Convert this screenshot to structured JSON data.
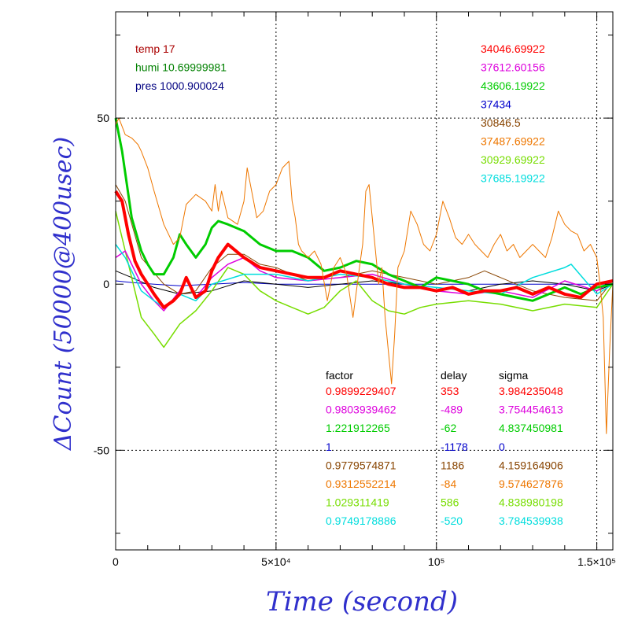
{
  "chart_data": {
    "type": "line",
    "xlabel": "Time (second)",
    "ylabel": "ΔCount (50000@400usec)",
    "xlim": [
      0,
      155000
    ],
    "ylim": [
      -80,
      82
    ],
    "grid": "dotted at x=5×10⁴, 10⁵, 1.5×10⁵ and y=50, -50",
    "x_tick_labels": [
      {
        "x": 0,
        "label": "0"
      },
      {
        "x": 50000,
        "label": "5×10⁴"
      },
      {
        "x": 100000,
        "label": "10⁵"
      },
      {
        "x": 150000,
        "label": "1.5×10⁵"
      }
    ],
    "y_tick_labels": [
      {
        "y": 50,
        "label": "50"
      },
      {
        "y": 0,
        "label": "0"
      },
      {
        "y": -50,
        "label": "-50"
      }
    ],
    "env": [
      {
        "text": "temp 17",
        "color": "#aa0000"
      },
      {
        "text": "humi 10.69999981",
        "color": "#008000"
      },
      {
        "text": "pres 1000.900024",
        "color": "#000080"
      }
    ],
    "means": [
      {
        "text": "34046.69922",
        "color": "#ff0000"
      },
      {
        "text": "37612.60156",
        "color": "#dd00dd"
      },
      {
        "text": "43606.19922",
        "color": "#00cc00"
      },
      {
        "text": "37434",
        "color": "#0000cc"
      },
      {
        "text": "30846.5",
        "color": "#884400"
      },
      {
        "text": "37487.69922",
        "color": "#ee7700"
      },
      {
        "text": "30929.69922",
        "color": "#77dd00"
      },
      {
        "text": "37685.19922",
        "color": "#00dddd"
      }
    ],
    "table": {
      "headers": [
        "factor",
        "delay",
        "sigma"
      ],
      "rows": [
        {
          "factor": "0.9899229407",
          "delay": "353",
          "sigma": "3.984235048",
          "color": "#ff0000"
        },
        {
          "factor": "0.9803939462",
          "delay": "-489",
          "sigma": "3.754454613",
          "color": "#dd00dd"
        },
        {
          "factor": "1.221912265",
          "delay": "-62",
          "sigma": "4.837450981",
          "color": "#00cc00"
        },
        {
          "factor": "1",
          "delay": "-1178",
          "sigma": "0",
          "color": "#0000cc"
        },
        {
          "factor": "0.9779574871",
          "delay": "1186",
          "sigma": "4.159164906",
          "color": "#884400"
        },
        {
          "factor": "0.9312552214",
          "delay": "-84",
          "sigma": "9.574627876",
          "color": "#ee7700"
        },
        {
          "factor": "1.029311419",
          "delay": "586",
          "sigma": "4.838980198",
          "color": "#77dd00"
        },
        {
          "factor": "0.9749178886",
          "delay": "-520",
          "sigma": "3.784539938",
          "color": "#00dddd"
        }
      ]
    },
    "series": [
      {
        "color": "#0000cc",
        "width": 1,
        "x": [
          0,
          5000,
          12000,
          20000,
          30000,
          40000,
          50000,
          60000,
          70000,
          80000,
          90000,
          100000,
          110000,
          120000,
          130000,
          140000,
          150000,
          155000
        ],
        "y": [
          1,
          0.5,
          0,
          -0.5,
          0,
          0.5,
          0,
          0,
          0,
          0,
          0,
          0,
          0,
          0,
          0,
          0,
          0,
          0
        ]
      },
      {
        "color": "#000000",
        "width": 1,
        "x": [
          0,
          5000,
          12000,
          20000,
          30000,
          40000,
          50000,
          60000,
          70000,
          80000,
          90000,
          100000,
          110000,
          120000,
          130000,
          140000,
          150000,
          155000
        ],
        "y": [
          4,
          2,
          -1,
          -3,
          -2,
          1,
          0,
          -1,
          0,
          1,
          0,
          -1,
          -2,
          0,
          1,
          0,
          -2,
          0
        ]
      },
      {
        "color": "#884400",
        "width": 1,
        "x": [
          0,
          3000,
          8000,
          15000,
          20000,
          25000,
          30000,
          35000,
          40000,
          45000,
          50000,
          60000,
          70000,
          80000,
          90000,
          100000,
          110000,
          115000,
          120000,
          130000,
          140000,
          150000,
          155000
        ],
        "y": [
          30,
          25,
          8,
          0,
          -3,
          -2,
          5,
          9,
          9,
          6,
          5,
          1,
          2,
          4,
          2,
          0,
          2,
          4,
          2,
          -2,
          -4,
          -5,
          1
        ]
      },
      {
        "color": "#77dd00",
        "width": 1.5,
        "x": [
          0,
          3000,
          8000,
          12000,
          15000,
          20000,
          25000,
          30000,
          35000,
          40000,
          45000,
          50000,
          55000,
          60000,
          65000,
          70000,
          75000,
          80000,
          85000,
          90000,
          95000,
          100000,
          110000,
          120000,
          130000,
          140000,
          150000,
          155000
        ],
        "y": [
          22,
          10,
          -10,
          -15,
          -19,
          -12,
          -8,
          -2,
          5,
          3,
          -2,
          -5,
          -7,
          -9,
          -7,
          -2,
          1,
          -5,
          -8,
          -9,
          -7,
          -6,
          -5,
          -6,
          -8,
          -6,
          -7,
          0
        ]
      },
      {
        "color": "#dd00dd",
        "width": 1.5,
        "x": [
          0,
          3000,
          8000,
          12000,
          15000,
          20000,
          22000,
          25000,
          30000,
          35000,
          40000,
          45000,
          50000,
          60000,
          70000,
          80000,
          90000,
          100000,
          110000,
          120000,
          130000,
          140000,
          150000,
          155000
        ],
        "y": [
          8,
          10,
          0,
          -5,
          -8,
          -2,
          2,
          -4,
          2,
          6,
          8,
          4,
          2,
          1,
          2,
          3,
          0,
          -2,
          -3,
          -2,
          -4,
          1,
          -2,
          1
        ]
      },
      {
        "color": "#00dddd",
        "width": 1.5,
        "x": [
          0,
          3000,
          8000,
          12000,
          15000,
          20000,
          25000,
          30000,
          40000,
          50000,
          60000,
          70000,
          80000,
          90000,
          100000,
          110000,
          120000,
          130000,
          140000,
          142000,
          150000,
          155000
        ],
        "y": [
          12,
          8,
          -2,
          -5,
          -7,
          -3,
          -5,
          0,
          3,
          3,
          1,
          3,
          2,
          0,
          -1,
          -2,
          -3,
          2,
          5,
          6,
          -3,
          0
        ]
      },
      {
        "color": "#00cc00",
        "width": 3,
        "x": [
          0,
          2000,
          5000,
          8000,
          10000,
          12000,
          15000,
          18000,
          20000,
          22000,
          25000,
          28000,
          30000,
          32000,
          35000,
          40000,
          45000,
          50000,
          55000,
          60000,
          65000,
          70000,
          75000,
          80000,
          85000,
          90000,
          95000,
          100000,
          105000,
          110000,
          115000,
          120000,
          125000,
          130000,
          135000,
          140000,
          145000,
          150000,
          155000
        ],
        "y": [
          50,
          40,
          20,
          10,
          6,
          3,
          3,
          8,
          15,
          12,
          8,
          12,
          17,
          19,
          18,
          16,
          12,
          10,
          10,
          8,
          4,
          5,
          7,
          6,
          3,
          1,
          -1,
          2,
          1,
          0,
          -2,
          -3,
          -4,
          -5,
          -3,
          -1,
          -3,
          -1,
          0
        ]
      },
      {
        "color": "#ff0000",
        "width": 4,
        "x": [
          0,
          2000,
          4000,
          6000,
          8000,
          10000,
          12000,
          15000,
          18000,
          20000,
          22000,
          25000,
          28000,
          30000,
          32000,
          35000,
          40000,
          45000,
          50000,
          55000,
          60000,
          65000,
          70000,
          75000,
          80000,
          85000,
          90000,
          95000,
          100000,
          105000,
          110000,
          115000,
          120000,
          125000,
          130000,
          135000,
          140000,
          145000,
          150000,
          155000
        ],
        "y": [
          28,
          25,
          15,
          7,
          3,
          0,
          -3,
          -7,
          -5,
          -3,
          2,
          -4,
          -2,
          4,
          8,
          12,
          8,
          5,
          4,
          3,
          2,
          2,
          4,
          3,
          2,
          0,
          -1,
          -1,
          -2,
          -1,
          -3,
          -2,
          -2,
          -1,
          -3,
          -1,
          -3,
          -4,
          0,
          1
        ]
      },
      {
        "color": "#ee7700",
        "width": 1,
        "x": [
          0,
          1000,
          3000,
          5000,
          7000,
          8000,
          10000,
          12000,
          15000,
          18000,
          20000,
          22000,
          25000,
          28000,
          30000,
          31000,
          32000,
          33000,
          35000,
          38000,
          40000,
          41000,
          42000,
          44000,
          46000,
          48000,
          50000,
          52000,
          54000,
          55000,
          56000,
          57000,
          58000,
          60000,
          62000,
          64000,
          66000,
          68000,
          70000,
          72000,
          74000,
          76000,
          77000,
          78000,
          79000,
          80000,
          81000,
          82000,
          83000,
          84000,
          85000,
          86000,
          87000,
          88000,
          90000,
          92000,
          94000,
          96000,
          98000,
          100000,
          102000,
          104000,
          106000,
          108000,
          110000,
          112000,
          114000,
          116000,
          118000,
          120000,
          122000,
          124000,
          126000,
          128000,
          130000,
          132000,
          134000,
          136000,
          138000,
          140000,
          142000,
          144000,
          146000,
          148000,
          150000,
          151000,
          152000,
          153000,
          154000,
          155000
        ],
        "y": [
          48,
          50,
          45,
          44,
          42,
          40,
          35,
          28,
          18,
          12,
          14,
          24,
          27,
          25,
          22,
          30,
          22,
          28,
          20,
          18,
          25,
          35,
          30,
          20,
          22,
          28,
          30,
          35,
          37,
          25,
          20,
          12,
          10,
          8,
          10,
          6,
          -5,
          5,
          8,
          3,
          -10,
          5,
          12,
          28,
          30,
          20,
          10,
          0,
          5,
          -10,
          -20,
          -30,
          -15,
          5,
          10,
          22,
          18,
          12,
          10,
          15,
          25,
          20,
          14,
          12,
          15,
          12,
          10,
          8,
          12,
          15,
          10,
          12,
          8,
          10,
          12,
          10,
          8,
          14,
          22,
          18,
          16,
          15,
          10,
          12,
          8,
          0,
          -10,
          -45,
          -20,
          0
        ]
      }
    ]
  }
}
